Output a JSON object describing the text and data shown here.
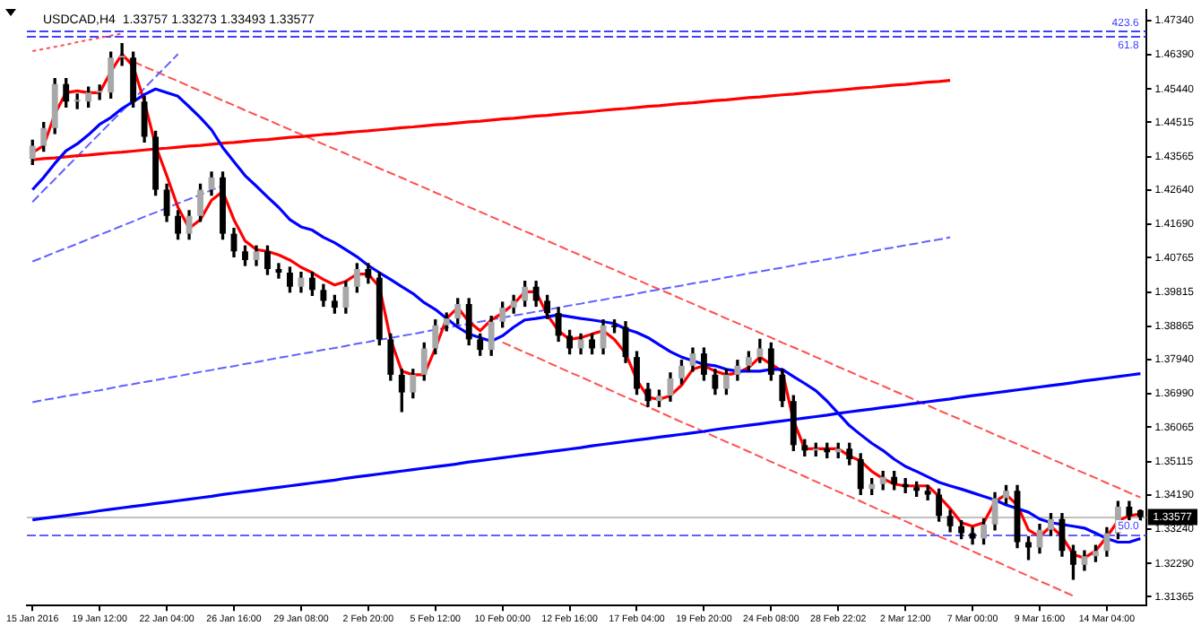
{
  "chart_data": {
    "type": "candlestick",
    "title": "USDCAD,H4  1.33757 1.33273 1.33493 1.33577",
    "categories": [
      "15 Jan 2016",
      null,
      null,
      null,
      null,
      null,
      "19 Jan 12:00",
      null,
      null,
      null,
      null,
      null,
      "22 Jan 04:00",
      null,
      null,
      null,
      null,
      null,
      "26 Jan 16:00",
      null,
      null,
      null,
      null,
      null,
      "29 Jan 08:00",
      null,
      null,
      null,
      null,
      null,
      "2 Feb 20:00",
      null,
      null,
      null,
      null,
      null,
      "5 Feb 12:00",
      null,
      null,
      null,
      null,
      null,
      "10 Feb 00:00",
      null,
      null,
      null,
      null,
      null,
      "12 Feb 16:00",
      null,
      null,
      null,
      null,
      null,
      "17 Feb 04:00",
      null,
      null,
      null,
      null,
      null,
      "19 Feb 20:00",
      null,
      null,
      null,
      null,
      null,
      "24 Feb 08:00",
      null,
      null,
      null,
      null,
      null,
      "28 Feb 22:02",
      null,
      null,
      null,
      null,
      null,
      "2 Mar 12:00",
      null,
      null,
      null,
      null,
      null,
      "7 Mar 00:00",
      null,
      null,
      null,
      null,
      null,
      "9 Mar 16:00",
      null,
      null,
      null,
      null,
      null,
      "14 Mar 04:00",
      null,
      null,
      null
    ],
    "ohlc": [
      [
        1.435,
        1.4402,
        1.4335,
        1.4387
      ],
      [
        1.4387,
        1.4451,
        1.4372,
        1.4436
      ],
      [
        1.4436,
        1.4573,
        1.4421,
        1.4558
      ],
      [
        1.4558,
        1.4573,
        1.4494,
        1.4509
      ],
      [
        1.4509,
        1.453,
        1.449,
        1.4509
      ],
      [
        1.4509,
        1.4549,
        1.4494,
        1.4534
      ],
      [
        1.4534,
        1.4555,
        1.4515,
        1.4534
      ],
      [
        1.4534,
        1.4646,
        1.4519,
        1.4631
      ],
      [
        1.4631,
        1.467,
        1.461,
        1.4631
      ],
      [
        1.4631,
        1.4646,
        1.4494,
        1.4509
      ],
      [
        1.4509,
        1.4524,
        1.4397,
        1.4412
      ],
      [
        1.4412,
        1.4427,
        1.425,
        1.4265
      ],
      [
        1.4265,
        1.428,
        1.4177,
        1.4192
      ],
      [
        1.4192,
        1.4207,
        1.4128,
        1.4143
      ],
      [
        1.4143,
        1.4207,
        1.4128,
        1.4192
      ],
      [
        1.4192,
        1.428,
        1.4177,
        1.4265
      ],
      [
        1.4265,
        1.4314,
        1.425,
        1.4299
      ],
      [
        1.4299,
        1.4314,
        1.4128,
        1.4143
      ],
      [
        1.4143,
        1.4158,
        1.4079,
        1.4094
      ],
      [
        1.4094,
        1.4109,
        1.4055,
        1.407
      ],
      [
        1.407,
        1.4109,
        1.4055,
        1.4094
      ],
      [
        1.4094,
        1.4109,
        1.403,
        1.4045
      ],
      [
        1.4045,
        1.406,
        1.402,
        1.4035
      ],
      [
        1.4035,
        1.405,
        1.3981,
        1.3996
      ],
      [
        1.3996,
        1.4036,
        1.3981,
        1.4021
      ],
      [
        1.4021,
        1.4036,
        1.3972,
        1.3987
      ],
      [
        1.3987,
        1.4002,
        1.3942,
        1.3957
      ],
      [
        1.3957,
        1.3972,
        1.3923,
        1.3938
      ],
      [
        1.3938,
        1.4011,
        1.3923,
        1.3996
      ],
      [
        1.3996,
        1.406,
        1.3981,
        1.4045
      ],
      [
        1.4045,
        1.406,
        1.4006,
        1.4021
      ],
      [
        1.4021,
        1.4036,
        1.3835,
        1.385
      ],
      [
        1.385,
        1.3865,
        1.3737,
        1.3752
      ],
      [
        1.3752,
        1.3767,
        1.365,
        1.3703
      ],
      [
        1.3703,
        1.3767,
        1.3688,
        1.3752
      ],
      [
        1.3752,
        1.384,
        1.3737,
        1.3825
      ],
      [
        1.3825,
        1.3904,
        1.381,
        1.3889
      ],
      [
        1.3889,
        1.3923,
        1.3874,
        1.3908
      ],
      [
        1.3908,
        1.3963,
        1.3893,
        1.3948
      ],
      [
        1.3948,
        1.3963,
        1.3835,
        1.385
      ],
      [
        1.385,
        1.3865,
        1.3806,
        1.3821
      ],
      [
        1.3821,
        1.3914,
        1.3806,
        1.3899
      ],
      [
        1.3899,
        1.3953,
        1.3884,
        1.3938
      ],
      [
        1.3938,
        1.3972,
        1.3923,
        1.3957
      ],
      [
        1.3957,
        1.4011,
        1.3942,
        1.3996
      ],
      [
        1.3996,
        1.4011,
        1.3942,
        1.3957
      ],
      [
        1.3957,
        1.3972,
        1.3908,
        1.3923
      ],
      [
        1.3923,
        1.3938,
        1.3845,
        1.386
      ],
      [
        1.386,
        1.3875,
        1.381,
        1.3825
      ],
      [
        1.3825,
        1.3865,
        1.381,
        1.385
      ],
      [
        1.385,
        1.3865,
        1.381,
        1.3825
      ],
      [
        1.3825,
        1.3904,
        1.381,
        1.3889
      ],
      [
        1.3889,
        1.3904,
        1.3869,
        1.3884
      ],
      [
        1.3884,
        1.3899,
        1.3786,
        1.3801
      ],
      [
        1.3801,
        1.3816,
        1.3698,
        1.3713
      ],
      [
        1.3713,
        1.3728,
        1.3664,
        1.3679
      ],
      [
        1.3679,
        1.3709,
        1.3664,
        1.3694
      ],
      [
        1.3694,
        1.3757,
        1.3679,
        1.3742
      ],
      [
        1.3742,
        1.3792,
        1.3727,
        1.3777
      ],
      [
        1.3777,
        1.3826,
        1.3762,
        1.3811
      ],
      [
        1.3811,
        1.3826,
        1.3737,
        1.3752
      ],
      [
        1.3752,
        1.3767,
        1.3698,
        1.3713
      ],
      [
        1.3713,
        1.3767,
        1.3698,
        1.3752
      ],
      [
        1.3752,
        1.3792,
        1.3737,
        1.3777
      ],
      [
        1.3777,
        1.3816,
        1.3762,
        1.3801
      ],
      [
        1.3801,
        1.385,
        1.3786,
        1.3825
      ],
      [
        1.3825,
        1.384,
        1.3737,
        1.3752
      ],
      [
        1.3752,
        1.3767,
        1.3664,
        1.3679
      ],
      [
        1.3679,
        1.3694,
        1.3542,
        1.3557
      ],
      [
        1.3557,
        1.3572,
        1.3527,
        1.3542
      ],
      [
        1.3542,
        1.3562,
        1.3527,
        1.3547
      ],
      [
        1.3547,
        1.3562,
        1.3522,
        1.3537
      ],
      [
        1.3537,
        1.3562,
        1.3522,
        1.3547
      ],
      [
        1.3547,
        1.3562,
        1.3503,
        1.3518
      ],
      [
        1.3518,
        1.3533,
        1.342,
        1.3435
      ],
      [
        1.3435,
        1.3464,
        1.342,
        1.3449
      ],
      [
        1.3449,
        1.3484,
        1.3434,
        1.3469
      ],
      [
        1.3469,
        1.3484,
        1.3434,
        1.3449
      ],
      [
        1.3449,
        1.3464,
        1.3425,
        1.344
      ],
      [
        1.344,
        1.3455,
        1.3415,
        1.343
      ],
      [
        1.343,
        1.3445,
        1.3405,
        1.342
      ],
      [
        1.342,
        1.3435,
        1.3346,
        1.3361
      ],
      [
        1.3361,
        1.3376,
        1.3317,
        1.3332
      ],
      [
        1.3332,
        1.3347,
        1.3298,
        1.3313
      ],
      [
        1.3313,
        1.3328,
        1.3283,
        1.3298
      ],
      [
        1.3298,
        1.3352,
        1.3283,
        1.3337
      ],
      [
        1.3337,
        1.3425,
        1.3322,
        1.341
      ],
      [
        1.341,
        1.3445,
        1.3395,
        1.343
      ],
      [
        1.343,
        1.3445,
        1.3273,
        1.3288
      ],
      [
        1.3288,
        1.3303,
        1.324,
        1.3273
      ],
      [
        1.3273,
        1.3337,
        1.3258,
        1.3322
      ],
      [
        1.3322,
        1.3367,
        1.3307,
        1.3352
      ],
      [
        1.3352,
        1.3367,
        1.3249,
        1.3264
      ],
      [
        1.3264,
        1.3279,
        1.3185,
        1.3225
      ],
      [
        1.3225,
        1.3264,
        1.321,
        1.3249
      ],
      [
        1.3249,
        1.3279,
        1.3234,
        1.3264
      ],
      [
        1.3264,
        1.3328,
        1.3249,
        1.3313
      ],
      [
        1.3313,
        1.3401,
        1.3298,
        1.3386
      ],
      [
        1.3386,
        1.3401,
        1.3346,
        1.3361
      ],
      [
        1.3376,
        1.3377,
        1.3349,
        1.33577
      ]
    ],
    "series": [
      {
        "type": "line",
        "color": "#0000ff",
        "line_style": "solid",
        "values": [
          1.4265,
          1.4299,
          1.4338,
          1.4373,
          1.4392,
          1.4417,
          1.4446,
          1.4465,
          1.449,
          1.4509,
          1.4529,
          1.4544,
          1.4534,
          1.4524,
          1.4495,
          1.4465,
          1.4431,
          1.4382,
          1.4343,
          1.4304,
          1.4275,
          1.4245,
          1.4216,
          1.4182,
          1.4162,
          1.4153,
          1.4133,
          1.4118,
          1.4099,
          1.4079,
          1.4055,
          1.4035,
          1.4016,
          1.3996,
          1.3977,
          1.3952,
          1.3933,
          1.3908,
          1.3884,
          1.3865,
          1.3855,
          1.3845,
          1.386,
          1.3884,
          1.3904,
          1.3908,
          1.3913,
          1.3918,
          1.3913,
          1.3908,
          1.3904,
          1.3899,
          1.3894,
          1.3879,
          1.3869,
          1.3855,
          1.3835,
          1.3816,
          1.3801,
          1.3791,
          1.3781,
          1.3777,
          1.3767,
          1.3762,
          1.3762,
          1.3762,
          1.3767,
          1.3767,
          1.3747,
          1.3728,
          1.3708,
          1.3679,
          1.3645,
          1.3611,
          1.3586,
          1.3562,
          1.3542,
          1.3518,
          1.3498,
          1.3484,
          1.3469,
          1.3454,
          1.3444,
          1.3435,
          1.3425,
          1.3415,
          1.3405,
          1.3391,
          1.3381,
          1.3371,
          1.3352,
          1.3342,
          1.3337,
          1.3332,
          1.3327,
          1.3313,
          1.3298,
          1.3288,
          1.3288,
          1.3298
        ]
      },
      {
        "type": "line",
        "color": "#ff0000",
        "line_style": "solid",
        "values": [
          1.4368,
          1.4387,
          1.4475,
          1.4534,
          1.4539,
          1.4534,
          1.4534,
          1.4592,
          1.4641,
          1.4607,
          1.4509,
          1.4387,
          1.4304,
          1.4216,
          1.4158,
          1.4182,
          1.4236,
          1.426,
          1.4182,
          1.4123,
          1.4099,
          1.4094,
          1.4084,
          1.407,
          1.405,
          1.4035,
          1.4016,
          1.4001,
          1.4011,
          1.4031,
          1.4031,
          1.3996,
          1.385,
          1.3762,
          1.3752,
          1.3752,
          1.3825,
          1.3908,
          1.3938,
          1.3899,
          1.3874,
          1.3904,
          1.3923,
          1.3948,
          1.3982,
          1.3982,
          1.3918,
          1.3874,
          1.385,
          1.3855,
          1.3865,
          1.3874,
          1.385,
          1.3811,
          1.3738,
          1.3689,
          1.3684,
          1.3694,
          1.3723,
          1.3767,
          1.3777,
          1.3762,
          1.3752,
          1.3757,
          1.3772,
          1.3801,
          1.3781,
          1.3762,
          1.3625,
          1.3547,
          1.3547,
          1.3547,
          1.3547,
          1.3527,
          1.3513,
          1.3484,
          1.3464,
          1.3449,
          1.3444,
          1.3444,
          1.3444,
          1.3415,
          1.3381,
          1.3342,
          1.3332,
          1.3342,
          1.34,
          1.342,
          1.3391,
          1.3322,
          1.3303,
          1.3332,
          1.3303,
          1.3254,
          1.3244,
          1.3264,
          1.3303,
          1.3347,
          1.3361,
          1.3366
        ]
      },
      {
        "type": "line",
        "color": "#ff0000",
        "line_style": "solid",
        "values": [
          1.4348,
          1.4351,
          1.4353,
          1.4356,
          1.4359,
          1.4361,
          1.4364,
          1.4367,
          1.4369,
          1.4372,
          1.4375,
          1.4378,
          1.438,
          1.4383,
          1.4386,
          1.4388,
          1.4391,
          1.4394,
          1.4396,
          1.4399,
          1.4402,
          1.4404,
          1.4407,
          1.441,
          1.4412,
          1.4415,
          1.4418,
          1.442,
          1.4423,
          1.4426,
          1.4428,
          1.4431,
          1.4434,
          1.4437,
          1.4439,
          1.4442,
          1.4445,
          1.4447,
          1.445,
          1.4453,
          1.4455,
          1.4458,
          1.4461,
          1.4463,
          1.4466,
          1.4469,
          1.4471,
          1.4474,
          1.4477,
          1.4479,
          1.4482,
          1.4485,
          1.4488,
          1.449,
          1.4493,
          1.4496,
          1.4498,
          1.4501,
          1.4504,
          1.4506,
          1.4509,
          1.4512,
          1.4514,
          1.4517,
          1.452,
          1.4522,
          1.4525,
          1.4528,
          1.453,
          1.4533,
          1.4536,
          1.4538,
          1.4541,
          1.4544,
          1.4547,
          1.4549,
          1.4552,
          1.4555,
          1.4557,
          1.456,
          1.4563,
          1.4565,
          1.4568,
          null,
          null,
          null,
          null,
          null,
          null,
          null,
          null,
          null,
          null,
          null,
          null,
          null,
          null,
          null,
          null,
          null
        ]
      },
      {
        "type": "line",
        "color": "#0000ff",
        "line_style": "solid",
        "values": [
          1.335,
          1.3354,
          1.3358,
          1.3362,
          1.3366,
          1.337,
          1.3375,
          1.3379,
          1.3383,
          1.3387,
          1.3391,
          1.3395,
          1.3399,
          1.3403,
          1.3407,
          1.3411,
          1.3415,
          1.342,
          1.3424,
          1.3428,
          1.3432,
          1.3436,
          1.344,
          1.3444,
          1.3448,
          1.3452,
          1.3456,
          1.346,
          1.3465,
          1.3469,
          1.3473,
          1.3477,
          1.3481,
          1.3485,
          1.3489,
          1.3493,
          1.3497,
          1.3501,
          1.3505,
          1.351,
          1.3514,
          1.3518,
          1.3522,
          1.3526,
          1.353,
          1.3534,
          1.3538,
          1.3542,
          1.3546,
          1.355,
          1.3555,
          1.3559,
          1.3563,
          1.3567,
          1.3571,
          1.3575,
          1.3579,
          1.3583,
          1.3587,
          1.3591,
          1.3595,
          1.36,
          1.3604,
          1.3608,
          1.3612,
          1.3616,
          1.362,
          1.3624,
          1.3628,
          1.3632,
          1.3636,
          1.364,
          1.3645,
          1.3649,
          1.3653,
          1.3657,
          1.3661,
          1.3665,
          1.3669,
          1.3673,
          1.3677,
          1.3681,
          1.3685,
          1.369,
          1.3694,
          1.3698,
          1.3702,
          1.3706,
          1.371,
          1.3714,
          1.3718,
          1.3722,
          1.3726,
          1.373,
          1.3735,
          1.3739,
          1.3743,
          1.3747,
          1.3751,
          1.3755
        ]
      },
      {
        "type": "line",
        "color": "#6060ff",
        "line_style": "dashed",
        "values": [
          1.3676,
          1.3682,
          1.3687,
          1.3693,
          1.3698,
          1.3704,
          1.3709,
          1.3715,
          1.3721,
          1.3726,
          1.3732,
          1.3737,
          1.3743,
          1.3748,
          1.3754,
          1.376,
          1.3765,
          1.3771,
          1.3776,
          1.3782,
          1.3787,
          1.3793,
          1.3799,
          1.3804,
          1.381,
          1.3815,
          1.3821,
          1.3826,
          1.3832,
          1.3838,
          1.3843,
          1.3849,
          1.3854,
          1.386,
          1.3865,
          1.3871,
          1.3877,
          1.3882,
          1.3888,
          1.3893,
          1.3899,
          1.3905,
          1.391,
          1.3916,
          1.3921,
          1.3927,
          1.3932,
          1.3938,
          1.3944,
          1.3949,
          1.3955,
          1.396,
          1.3966,
          1.3971,
          1.3977,
          1.3983,
          1.3988,
          1.3994,
          1.3999,
          1.4005,
          1.401,
          1.4016,
          1.4022,
          1.4027,
          1.4033,
          1.4038,
          1.4044,
          1.4049,
          1.4055,
          1.4061,
          1.4066,
          1.4072,
          1.4077,
          1.4083,
          1.4088,
          1.4094,
          1.41,
          1.4105,
          1.4111,
          1.4116,
          1.4122,
          1.4127,
          1.4133,
          null,
          null,
          null,
          null,
          null,
          null,
          null,
          null,
          null,
          null,
          null,
          null,
          null,
          null,
          null,
          null,
          null
        ]
      },
      {
        "type": "line",
        "color": "#6060ff",
        "line_style": "dashed",
        "values": [
          1.4066,
          1.4078,
          1.4091,
          1.4103,
          1.4115,
          1.4128,
          1.414,
          1.4152,
          1.4165,
          1.4177,
          1.419,
          1.4202,
          1.4214,
          1.4227,
          1.4239,
          1.4251,
          1.4264,
          1.4276,
          null,
          null,
          null,
          null,
          null,
          null,
          null,
          null,
          null,
          null,
          null,
          null,
          null,
          null,
          null,
          null,
          null,
          null,
          null,
          null,
          null,
          null,
          null,
          null,
          null,
          null,
          null,
          null,
          null,
          null,
          null,
          null,
          null,
          null,
          null,
          null,
          null,
          null,
          null,
          null,
          null,
          null,
          null,
          null,
          null,
          null,
          null,
          null,
          null,
          null,
          null,
          null,
          null,
          null,
          null,
          null,
          null,
          null,
          null,
          null,
          null,
          null,
          null,
          null,
          null,
          null,
          null,
          null,
          null,
          null,
          null,
          null,
          null,
          null,
          null,
          null,
          null,
          null,
          null,
          null,
          null,
          null
        ]
      },
      {
        "type": "line",
        "color": "#6060ff",
        "line_style": "dashed",
        "values": [
          1.4231,
          1.4263,
          1.4294,
          1.4326,
          1.4357,
          1.4389,
          1.442,
          1.4452,
          1.4483,
          1.4515,
          1.4546,
          1.4578,
          1.4609,
          1.4641,
          null,
          null,
          null,
          null,
          null,
          null,
          null,
          null,
          null,
          null,
          null,
          null,
          null,
          null,
          null,
          null,
          null,
          null,
          null,
          null,
          null,
          null,
          null,
          null,
          null,
          null,
          null,
          null,
          null,
          null,
          null,
          null,
          null,
          null,
          null,
          null,
          null,
          null,
          null,
          null,
          null,
          null,
          null,
          null,
          null,
          null,
          null,
          null,
          null,
          null,
          null,
          null,
          null,
          null,
          null,
          null,
          null,
          null,
          null,
          null,
          null,
          null,
          null,
          null,
          null,
          null,
          null,
          null,
          null,
          null,
          null,
          null,
          null,
          null,
          null,
          null,
          null,
          null,
          null,
          null,
          null,
          null,
          null,
          null,
          null,
          null
        ]
      },
      {
        "type": "line",
        "color": "#ff5050",
        "line_style": "dashed",
        "values": [
          null,
          null,
          null,
          null,
          null,
          null,
          null,
          null,
          1.4633,
          1.462,
          1.4606,
          1.4593,
          1.4579,
          1.4566,
          1.4552,
          1.4539,
          1.4526,
          1.4512,
          1.4499,
          1.4485,
          1.4472,
          1.4459,
          1.4445,
          1.4432,
          1.4418,
          1.4405,
          1.4391,
          1.4378,
          1.4365,
          1.4351,
          1.4338,
          1.4324,
          1.4311,
          1.4298,
          1.4284,
          1.4271,
          1.4257,
          1.4244,
          1.423,
          1.4217,
          1.4204,
          1.419,
          1.4177,
          1.4163,
          1.415,
          1.4137,
          1.4123,
          1.411,
          1.4096,
          1.4083,
          1.4069,
          1.4056,
          1.4043,
          1.4029,
          1.4016,
          1.4002,
          1.3989,
          1.3976,
          1.3962,
          1.3949,
          1.3935,
          1.3922,
          1.3908,
          1.3895,
          1.3882,
          1.3868,
          1.3855,
          1.3841,
          1.3828,
          1.3815,
          1.3801,
          1.3788,
          1.3774,
          1.3761,
          1.3747,
          1.3734,
          1.3721,
          1.3707,
          1.3694,
          1.368,
          1.3667,
          1.3653,
          1.364,
          1.3627,
          1.3613,
          1.36,
          1.3586,
          1.3573,
          1.356,
          1.3546,
          1.3533,
          1.3519,
          1.3506,
          1.3492,
          1.3479,
          1.3466,
          1.3452,
          1.3439,
          1.3425,
          1.3412
        ]
      },
      {
        "type": "line",
        "color": "#ff5050",
        "line_style": "dashed",
        "values": [
          null,
          null,
          null,
          null,
          null,
          null,
          null,
          null,
          null,
          null,
          null,
          null,
          null,
          null,
          null,
          null,
          null,
          null,
          null,
          null,
          null,
          null,
          null,
          null,
          null,
          null,
          null,
          null,
          null,
          null,
          null,
          null,
          null,
          null,
          null,
          null,
          null,
          null,
          null,
          null,
          null,
          null,
          1.3842,
          1.3828,
          1.3814,
          1.3801,
          1.3787,
          1.3773,
          1.3759,
          1.3746,
          1.3732,
          1.3718,
          1.3704,
          1.369,
          1.3677,
          1.3663,
          1.3649,
          1.3635,
          1.3621,
          1.3608,
          1.3594,
          1.358,
          1.3566,
          1.3553,
          1.3539,
          1.3525,
          1.3511,
          1.3497,
          1.3484,
          1.347,
          1.3456,
          1.3442,
          1.3428,
          1.3415,
          1.3401,
          1.3387,
          1.3373,
          1.336,
          1.3346,
          1.3332,
          1.3318,
          1.3304,
          1.3291,
          1.3277,
          1.3263,
          1.3249,
          1.3236,
          1.3222,
          1.3208,
          1.3194,
          1.318,
          1.3167,
          1.3153,
          1.3139,
          null,
          null,
          null,
          null,
          null,
          null
        ]
      },
      {
        "type": "line",
        "color": "#ff5050",
        "line_style": "dotted",
        "values": [
          1.4649,
          1.4655,
          1.4661,
          1.4667,
          1.4674,
          1.468,
          1.4686,
          1.4692,
          1.4698,
          null,
          null,
          null,
          null,
          null,
          null,
          null,
          null,
          null,
          null,
          null,
          null,
          null,
          null,
          null,
          null,
          null,
          null,
          null,
          null,
          null,
          null,
          null,
          null,
          null,
          null,
          null,
          null,
          null,
          null,
          null,
          null,
          null,
          null,
          null,
          null,
          null,
          null,
          null,
          null,
          null,
          null,
          null,
          null,
          null,
          null,
          null,
          null,
          null,
          null,
          null,
          null,
          null,
          null,
          null,
          null,
          null,
          null,
          null,
          null,
          null,
          null,
          null,
          null,
          null,
          null,
          null,
          null,
          null,
          null,
          null,
          null,
          null,
          null,
          null,
          null,
          null,
          null,
          null,
          null,
          null,
          null,
          null,
          null,
          null,
          null,
          null,
          null,
          null,
          null,
          null
        ]
      }
    ],
    "ylim": [
      1.3112,
      1.4763
    ],
    "yticks": [
      {
        "value": 1.4734,
        "label": "1.47340"
      },
      {
        "value": 1.4639,
        "label": "1.46390"
      },
      {
        "value": 1.4544,
        "label": "1.45440"
      },
      {
        "value": 1.44515,
        "label": "1.44515"
      },
      {
        "value": 1.43565,
        "label": "1.43565"
      },
      {
        "value": 1.4264,
        "label": "1.42640"
      },
      {
        "value": 1.4169,
        "label": "1.41690"
      },
      {
        "value": 1.40765,
        "label": "1.40765"
      },
      {
        "value": 1.39815,
        "label": "1.39815"
      },
      {
        "value": 1.38865,
        "label": "1.38865"
      },
      {
        "value": 1.3794,
        "label": "1.37940"
      },
      {
        "value": 1.3699,
        "label": "1.36990"
      },
      {
        "value": 1.36065,
        "label": "1.36065"
      },
      {
        "value": 1.35115,
        "label": "1.35115"
      },
      {
        "value": 1.3419,
        "label": "1.34190"
      },
      {
        "value": 1.3324,
        "label": "1.33240"
      },
      {
        "value": 1.3229,
        "label": "1.32290"
      },
      {
        "value": 1.31365,
        "label": "1.31365"
      }
    ],
    "ref_lines": [
      {
        "axis": "y",
        "value": 1.4705,
        "color": "#4040ff",
        "line_style": "dashed"
      },
      {
        "axis": "y",
        "value": 1.469,
        "color": "#4040ff",
        "line_style": "dashed"
      },
      {
        "axis": "y",
        "value": 1.3309,
        "color": "#6060ff",
        "line_style": "dashed"
      },
      {
        "axis": "y",
        "value": 1.33577,
        "label": "1.33577",
        "color": "#c0c0c0",
        "line_style": "solid"
      }
    ],
    "annotations": [
      {
        "text": "423.6",
        "y": 1.4705
      },
      {
        "text": "61.8",
        "y": 1.469
      },
      {
        "text": "50.0",
        "y": 1.3309
      }
    ]
  }
}
